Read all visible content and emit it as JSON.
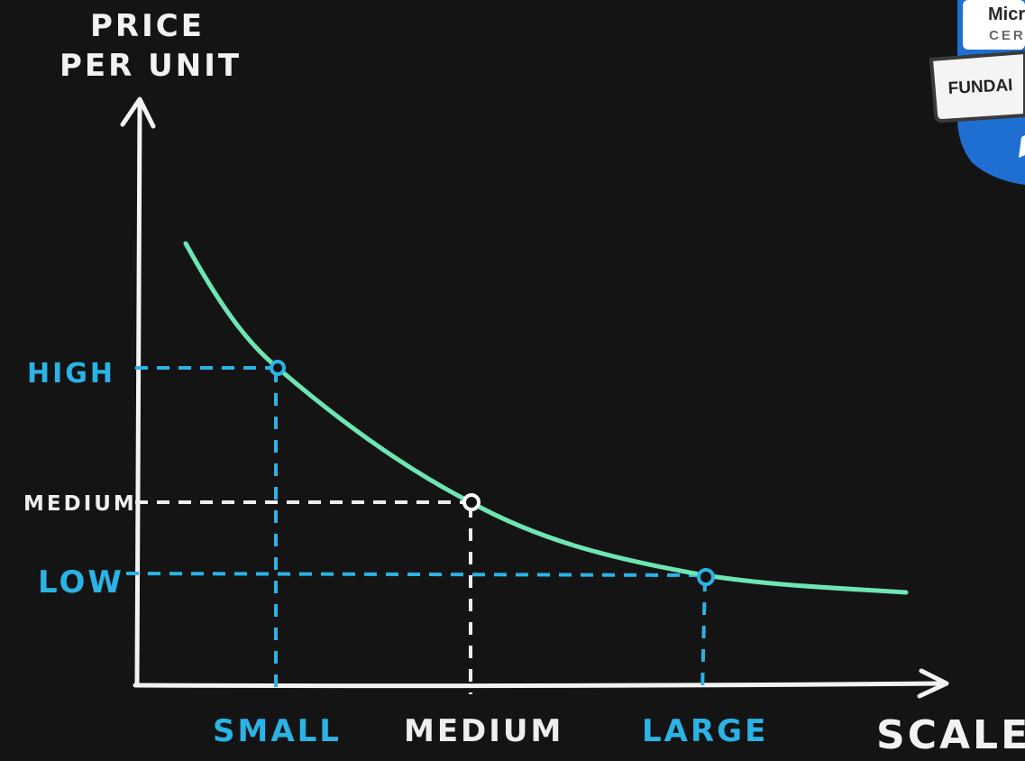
{
  "chart_data": {
    "type": "line",
    "ylabel_lines": [
      "PRICE",
      "PER UNIT"
    ],
    "xlabel": "SCALE",
    "x_categories": [
      "SMALL",
      "MEDIUM",
      "LARGE"
    ],
    "y_categories": [
      "HIGH",
      "MEDIUM",
      "LOW"
    ],
    "series": [
      {
        "curve": "decreasing",
        "points": [
          {
            "x": "SMALL",
            "y": "HIGH"
          },
          {
            "x": "MEDIUM",
            "y": "MEDIUM"
          },
          {
            "x": "LARGE",
            "y": "LOW"
          }
        ]
      }
    ],
    "grid": false
  },
  "badge": {
    "line1": "Micr",
    "line2": "CERT",
    "ribbon": "FUNDAI"
  },
  "colors": {
    "background": "#141414",
    "axis": "#f2f2f2",
    "curve": "#6ee6b4",
    "accent_blue": "#2bb3e6",
    "guide_white": "#eeeeee",
    "badge_blue": "#1e6fd1"
  }
}
